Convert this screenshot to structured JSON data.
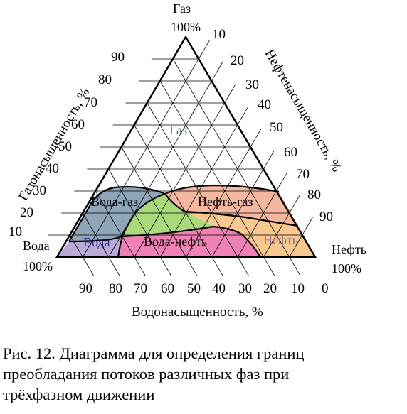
{
  "diagram": {
    "corners": {
      "top": [
        "Газ",
        "100%"
      ],
      "left": [
        "Вода",
        "100%"
      ],
      "right": [
        "Нефть",
        "100%"
      ]
    },
    "axes": {
      "gas": {
        "title": "Газонасыщенность, %",
        "ticks": [
          "10",
          "20",
          "30",
          "40",
          "50",
          "60",
          "70",
          "80",
          "90"
        ]
      },
      "oil": {
        "title": "Нефтенасыщенность, %",
        "ticks": [
          "10",
          "20",
          "30",
          "40",
          "50",
          "60",
          "70",
          "80",
          "90"
        ]
      },
      "water": {
        "title": "Водонасыщенность, %",
        "ticks": [
          "90",
          "80",
          "70",
          "60",
          "50",
          "40",
          "30",
          "20",
          "10",
          "0"
        ]
      }
    },
    "regions": [
      {
        "id": "gas",
        "label": "Газ",
        "color": "#ffffff",
        "label_color": "#3a6b6b"
      },
      {
        "id": "water-gas",
        "label": "Вода-газ",
        "color": "#8fa5b8",
        "label_color": "#000000"
      },
      {
        "id": "oil-gas",
        "label": "Нефть-газ",
        "color": "#f4b8a0",
        "label_color": "#000000"
      },
      {
        "id": "green",
        "label": "",
        "color": "#a9d97a",
        "label_color": "#000000"
      },
      {
        "id": "water",
        "label": "Вода",
        "color": "#b9a9d8",
        "label_color": "#2a2a8a"
      },
      {
        "id": "water-oil",
        "label": "Вода-нефть",
        "color": "#ee82b4",
        "label_color": "#000000"
      },
      {
        "id": "oil",
        "label": "Нефть",
        "color": "#f8c890",
        "label_color": "#8a6a8a"
      }
    ]
  },
  "caption": {
    "lines": [
      "Рис. 12. Диаграмма для определения границ",
      "преобладания потоков различных фаз при",
      "трёхфазном движении"
    ]
  }
}
